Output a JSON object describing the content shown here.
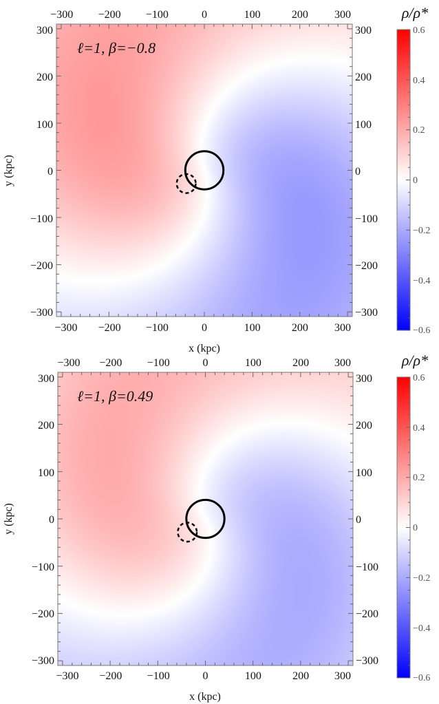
{
  "chart_data": [
    {
      "type": "heatmap",
      "annotation": "ℓ=1, β=−0.8",
      "xlabel": "x (kpc)",
      "ylabel": "y (kpc)",
      "xlim": [
        -310,
        310
      ],
      "ylim": [
        -310,
        310
      ],
      "xticks": [
        -300,
        -200,
        -100,
        0,
        100,
        200,
        300
      ],
      "yticks": [
        -300,
        -200,
        -100,
        0,
        100,
        200,
        300
      ],
      "x_tick_labels": [
        "−300",
        "−200",
        "−100",
        "0",
        "100",
        "200",
        "300"
      ],
      "y_tick_labels": [
        "−300",
        "−200",
        "−100",
        "0",
        "100",
        "200",
        "300"
      ],
      "pattern": {
        "amplitude": 0.24,
        "peak_radius": 250,
        "spiral_twist": 0.8
      },
      "field_peaks": [
        {
          "x": -230,
          "y": 130,
          "value": 0.24
        },
        {
          "x": 230,
          "y": -130,
          "value": -0.24
        }
      ],
      "circles": [
        {
          "style": "solid",
          "cx": 0,
          "cy": 0,
          "r": 40
        },
        {
          "style": "dashed",
          "cx": -38,
          "cy": -28,
          "r": 20
        }
      ],
      "colorbar": {
        "title": "ρ/ρ*",
        "range": [
          -0.6,
          0.6
        ],
        "ticks": [
          0.6,
          0.4,
          0.2,
          0,
          -0.2,
          -0.4,
          -0.6
        ],
        "tick_labels": [
          "0.6",
          "0.4",
          "0.2",
          "0",
          "−0.2",
          "−0.4",
          "−0.6"
        ],
        "colors": {
          "max": "#ff0000",
          "mid": "#ffffff",
          "min": "#0000ff"
        }
      }
    },
    {
      "type": "heatmap",
      "annotation": "ℓ=1, β=0.49",
      "xlabel": "x (kpc)",
      "ylabel": "y (kpc)",
      "xlim": [
        -310,
        310
      ],
      "ylim": [
        -310,
        310
      ],
      "xticks": [
        -300,
        -200,
        -100,
        0,
        100,
        200,
        300
      ],
      "yticks": [
        -300,
        -200,
        -100,
        0,
        100,
        200,
        300
      ],
      "x_tick_labels": [
        "−300",
        "−200",
        "−100",
        "0",
        "100",
        "200",
        "300"
      ],
      "y_tick_labels": [
        "−300",
        "−200",
        "−100",
        "0",
        "100",
        "200",
        "300"
      ],
      "pattern": {
        "amplitude": 0.2,
        "peak_radius": 250,
        "spiral_twist": 1.1
      },
      "field_peaks": [
        {
          "x": -220,
          "y": 160,
          "value": 0.2
        },
        {
          "x": 220,
          "y": -160,
          "value": -0.2
        }
      ],
      "circles": [
        {
          "style": "solid",
          "cx": 0,
          "cy": 0,
          "r": 40
        },
        {
          "style": "dashed",
          "cx": -38,
          "cy": -28,
          "r": 20
        }
      ],
      "colorbar": {
        "title": "ρ/ρ*",
        "range": [
          -0.6,
          0.6
        ],
        "ticks": [
          0.6,
          0.4,
          0.2,
          0,
          -0.2,
          -0.4,
          -0.6
        ],
        "tick_labels": [
          "0.6",
          "0.4",
          "0.2",
          "0",
          "−0.2",
          "−0.4",
          "−0.6"
        ],
        "colors": {
          "max": "#ff0000",
          "mid": "#ffffff",
          "min": "#0000ff"
        }
      }
    }
  ]
}
